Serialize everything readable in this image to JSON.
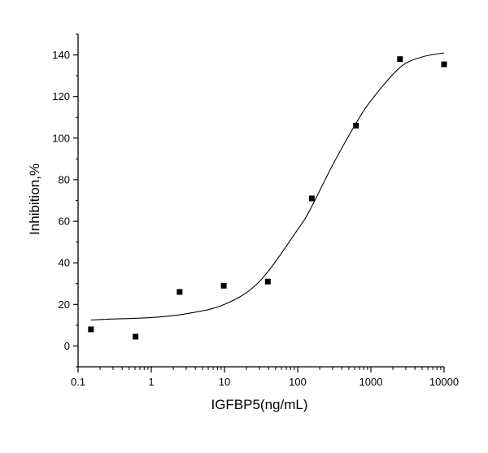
{
  "chart_data": {
    "type": "scatter",
    "xlabel": "IGFBP5(ng/mL)",
    "ylabel": "Inhibition,%",
    "x_scale": "log",
    "xlim": [
      0.1,
      10000
    ],
    "ylim": [
      -10,
      150
    ],
    "x_ticks": [
      "0.1",
      "1",
      "10",
      "100",
      "1000",
      "10000"
    ],
    "y_ticks": [
      "0",
      "20",
      "40",
      "60",
      "80",
      "100",
      "120",
      "140"
    ],
    "grid": false,
    "series": [
      {
        "marker": "square",
        "x": [
          0.15,
          0.61,
          2.44,
          9.77,
          39.1,
          156,
          625,
          2500,
          10000
        ],
        "y": [
          8,
          4.5,
          26,
          29,
          31,
          71,
          106,
          138,
          135.5
        ]
      },
      {
        "type": "line",
        "x": [
          0.15,
          0.3,
          1,
          3,
          10,
          30,
          100,
          150,
          300,
          600,
          1000,
          2500,
          5000,
          10000
        ],
        "y": [
          12.5,
          13,
          13.7,
          15.5,
          20,
          31,
          56,
          66,
          87,
          106,
          118,
          134,
          139,
          141
        ]
      }
    ]
  }
}
